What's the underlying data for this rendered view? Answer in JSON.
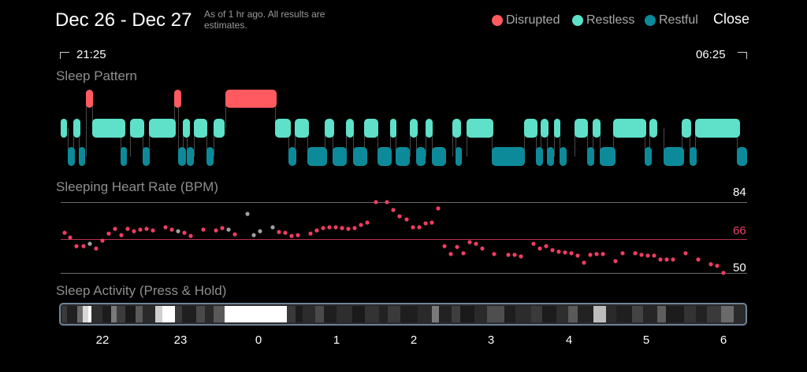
{
  "header": {
    "title": "Dec 26 - Dec 27",
    "subtitle": "As of 1 hr ago. All results are estimates.",
    "close_label": "Close"
  },
  "legend": [
    {
      "label": "Disrupted",
      "color": "#ff5a5f"
    },
    {
      "label": "Restless",
      "color": "#5ee0c9"
    },
    {
      "label": "Restful",
      "color": "#0d8a99"
    }
  ],
  "time_range": {
    "start": "21:25",
    "end": "06:25"
  },
  "sleep_pattern": {
    "label": "Sleep Pattern",
    "colors": {
      "disrupted": "#ff5a5f",
      "restless": "#5ee0c9",
      "restful": "#0d8a99"
    }
  },
  "heart_rate": {
    "label": "Sleeping Heart Rate (BPM)",
    "max": "84",
    "avg": "66",
    "min": "50",
    "avg_color": "#e8436a",
    "point_color": "#ef3d62",
    "missing_color": "#a0a0a0"
  },
  "activity": {
    "label": "Sleep Activity (Press & Hold)"
  },
  "x_ticks": [
    "22",
    "23",
    "0",
    "1",
    "2",
    "3",
    "4",
    "5",
    "6"
  ]
}
